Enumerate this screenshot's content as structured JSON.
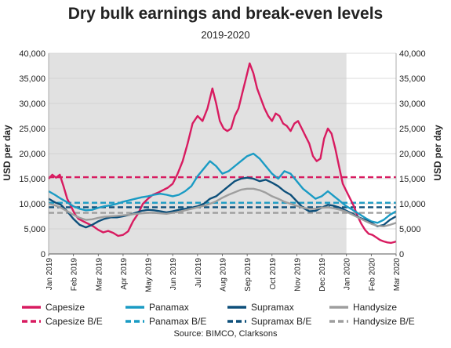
{
  "chart_data": {
    "type": "line",
    "title": "Dry bulk earnings and break-even levels",
    "subtitle": "2019-2020",
    "ylabel": "USD per day",
    "ylabel_right": "USD per day",
    "source": "Source: BIMCO, Clarksons",
    "ylim": [
      0,
      40000
    ],
    "yticks": [
      "0",
      "5,000",
      "10,000",
      "15,000",
      "20,000",
      "25,000",
      "30,000",
      "35,000",
      "40,000"
    ],
    "yticks_right": [
      "0",
      "5,000",
      "10,000",
      "15,000",
      "20,000",
      "25,000",
      "30,000",
      "35,000",
      "40,000"
    ],
    "x_ticks": [
      "Jan 2019",
      "Feb 2019",
      "Mar 2019",
      "Apr 2019",
      "May 2019",
      "Jun 2019",
      "Jul 2019",
      "Aug 2019",
      "Sep 2019",
      "Oct 2019",
      "Nov 2019",
      "Dec 2019",
      "Jan 2020",
      "Feb 2020",
      "Mar 2020"
    ],
    "shaded_range": [
      "Jan 2019",
      "Jan 2020"
    ],
    "grid": true,
    "legend_position": "bottom",
    "series": [
      {
        "name": "Capesize",
        "color": "#d81b60",
        "style": "solid",
        "points": [
          [
            0,
            15000
          ],
          [
            0.15,
            15800
          ],
          [
            0.3,
            15200
          ],
          [
            0.45,
            15800
          ],
          [
            0.6,
            13500
          ],
          [
            0.75,
            11000
          ],
          [
            0.9,
            9500
          ],
          [
            1.05,
            8000
          ],
          [
            1.2,
            7000
          ],
          [
            1.4,
            6500
          ],
          [
            1.6,
            6000
          ],
          [
            1.8,
            5500
          ],
          [
            2.0,
            4800
          ],
          [
            2.2,
            4300
          ],
          [
            2.4,
            4600
          ],
          [
            2.6,
            4200
          ],
          [
            2.8,
            3600
          ],
          [
            3.0,
            3800
          ],
          [
            3.2,
            4500
          ],
          [
            3.4,
            6500
          ],
          [
            3.6,
            8000
          ],
          [
            3.8,
            10000
          ],
          [
            4.0,
            11000
          ],
          [
            4.2,
            11800
          ],
          [
            4.4,
            12200
          ],
          [
            4.6,
            12700
          ],
          [
            4.8,
            13200
          ],
          [
            5.0,
            14000
          ],
          [
            5.2,
            16000
          ],
          [
            5.4,
            18500
          ],
          [
            5.6,
            22000
          ],
          [
            5.8,
            26000
          ],
          [
            6.0,
            27500
          ],
          [
            6.2,
            26500
          ],
          [
            6.4,
            29000
          ],
          [
            6.6,
            33000
          ],
          [
            6.75,
            30000
          ],
          [
            6.9,
            26500
          ],
          [
            7.05,
            25000
          ],
          [
            7.2,
            24500
          ],
          [
            7.35,
            25000
          ],
          [
            7.5,
            27500
          ],
          [
            7.65,
            29000
          ],
          [
            7.8,
            32000
          ],
          [
            7.95,
            35000
          ],
          [
            8.1,
            38000
          ],
          [
            8.25,
            36000
          ],
          [
            8.4,
            33000
          ],
          [
            8.55,
            31000
          ],
          [
            8.7,
            29000
          ],
          [
            8.85,
            27500
          ],
          [
            9.0,
            26500
          ],
          [
            9.15,
            28000
          ],
          [
            9.3,
            27500
          ],
          [
            9.45,
            26000
          ],
          [
            9.6,
            25500
          ],
          [
            9.75,
            24500
          ],
          [
            9.9,
            26000
          ],
          [
            10.05,
            26500
          ],
          [
            10.2,
            25000
          ],
          [
            10.35,
            23500
          ],
          [
            10.5,
            22000
          ],
          [
            10.65,
            19500
          ],
          [
            10.8,
            18500
          ],
          [
            10.95,
            19000
          ],
          [
            11.1,
            23000
          ],
          [
            11.25,
            25000
          ],
          [
            11.4,
            24000
          ],
          [
            11.55,
            21000
          ],
          [
            11.7,
            17500
          ],
          [
            11.85,
            14000
          ],
          [
            12.0,
            12500
          ],
          [
            12.15,
            11000
          ],
          [
            12.3,
            9500
          ],
          [
            12.45,
            7500
          ],
          [
            12.6,
            6000
          ],
          [
            12.75,
            4800
          ],
          [
            12.9,
            4000
          ],
          [
            13.05,
            3800
          ],
          [
            13.2,
            3300
          ],
          [
            13.35,
            2800
          ],
          [
            13.5,
            2500
          ],
          [
            13.65,
            2300
          ],
          [
            13.8,
            2200
          ],
          [
            13.95,
            2400
          ],
          [
            14.0,
            2500
          ]
        ]
      },
      {
        "name": "Panamax",
        "color": "#1a9bc4",
        "style": "solid",
        "points": [
          [
            0,
            12500
          ],
          [
            0.25,
            11800
          ],
          [
            0.5,
            11000
          ],
          [
            0.75,
            10300
          ],
          [
            1.0,
            9500
          ],
          [
            1.25,
            9000
          ],
          [
            1.5,
            8700
          ],
          [
            1.75,
            8800
          ],
          [
            2.0,
            9200
          ],
          [
            2.25,
            9500
          ],
          [
            2.5,
            9700
          ],
          [
            2.75,
            10000
          ],
          [
            3.0,
            10400
          ],
          [
            3.25,
            10700
          ],
          [
            3.5,
            11000
          ],
          [
            3.75,
            11300
          ],
          [
            4.0,
            11500
          ],
          [
            4.25,
            11800
          ],
          [
            4.5,
            12000
          ],
          [
            4.75,
            11800
          ],
          [
            5.0,
            11500
          ],
          [
            5.25,
            11800
          ],
          [
            5.5,
            12500
          ],
          [
            5.75,
            13500
          ],
          [
            6.0,
            15500
          ],
          [
            6.25,
            17000
          ],
          [
            6.5,
            18500
          ],
          [
            6.75,
            17500
          ],
          [
            7.0,
            16000
          ],
          [
            7.25,
            16500
          ],
          [
            7.5,
            17500
          ],
          [
            7.75,
            18500
          ],
          [
            8.0,
            19500
          ],
          [
            8.25,
            20000
          ],
          [
            8.5,
            19000
          ],
          [
            8.75,
            17500
          ],
          [
            9.0,
            16000
          ],
          [
            9.25,
            15000
          ],
          [
            9.5,
            16500
          ],
          [
            9.75,
            16000
          ],
          [
            10.0,
            14500
          ],
          [
            10.25,
            13000
          ],
          [
            10.5,
            12000
          ],
          [
            10.75,
            11000
          ],
          [
            11.0,
            11500
          ],
          [
            11.25,
            12500
          ],
          [
            11.5,
            11500
          ],
          [
            11.75,
            10500
          ],
          [
            12.0,
            9500
          ],
          [
            12.25,
            8800
          ],
          [
            12.5,
            8000
          ],
          [
            12.75,
            7200
          ],
          [
            13.0,
            6500
          ],
          [
            13.25,
            6200
          ],
          [
            13.5,
            6800
          ],
          [
            13.75,
            7800
          ],
          [
            14.0,
            8500
          ]
        ]
      },
      {
        "name": "Supramax",
        "color": "#0d4f7a",
        "style": "solid",
        "points": [
          [
            0,
            11000
          ],
          [
            0.25,
            10300
          ],
          [
            0.5,
            9800
          ],
          [
            0.75,
            8500
          ],
          [
            1.0,
            7000
          ],
          [
            1.25,
            5800
          ],
          [
            1.5,
            5300
          ],
          [
            1.75,
            5800
          ],
          [
            2.0,
            6500
          ],
          [
            2.25,
            7000
          ],
          [
            2.5,
            7300
          ],
          [
            2.75,
            7300
          ],
          [
            3.0,
            7500
          ],
          [
            3.25,
            7800
          ],
          [
            3.5,
            8200
          ],
          [
            3.75,
            8600
          ],
          [
            4.0,
            8800
          ],
          [
            4.25,
            8700
          ],
          [
            4.5,
            8500
          ],
          [
            4.75,
            8300
          ],
          [
            5.0,
            8500
          ],
          [
            5.25,
            8800
          ],
          [
            5.5,
            9000
          ],
          [
            5.75,
            9200
          ],
          [
            6.0,
            9500
          ],
          [
            6.25,
            10000
          ],
          [
            6.5,
            11000
          ],
          [
            6.75,
            11500
          ],
          [
            7.0,
            12500
          ],
          [
            7.25,
            13500
          ],
          [
            7.5,
            14500
          ],
          [
            7.75,
            15000
          ],
          [
            8.0,
            15200
          ],
          [
            8.25,
            15000
          ],
          [
            8.5,
            14500
          ],
          [
            8.75,
            14800
          ],
          [
            9.0,
            14200
          ],
          [
            9.25,
            13500
          ],
          [
            9.5,
            12500
          ],
          [
            9.75,
            11800
          ],
          [
            10.0,
            10500
          ],
          [
            10.25,
            9200
          ],
          [
            10.5,
            8500
          ],
          [
            10.75,
            8600
          ],
          [
            11.0,
            9200
          ],
          [
            11.25,
            9800
          ],
          [
            11.5,
            9600
          ],
          [
            11.75,
            9200
          ],
          [
            12.0,
            8600
          ],
          [
            12.25,
            8000
          ],
          [
            12.5,
            7300
          ],
          [
            12.75,
            6800
          ],
          [
            13.0,
            6200
          ],
          [
            13.25,
            5500
          ],
          [
            13.5,
            5800
          ],
          [
            13.75,
            6800
          ],
          [
            14.0,
            7500
          ]
        ]
      },
      {
        "name": "Handysize",
        "color": "#9e9e9e",
        "style": "solid",
        "points": [
          [
            0,
            10000
          ],
          [
            0.25,
            9700
          ],
          [
            0.5,
            9200
          ],
          [
            0.75,
            8500
          ],
          [
            1.0,
            7800
          ],
          [
            1.25,
            7200
          ],
          [
            1.5,
            6800
          ],
          [
            1.75,
            6900
          ],
          [
            2.0,
            7200
          ],
          [
            2.25,
            7400
          ],
          [
            2.5,
            7500
          ],
          [
            2.75,
            7600
          ],
          [
            3.0,
            7700
          ],
          [
            3.25,
            7800
          ],
          [
            3.5,
            8000
          ],
          [
            3.75,
            8100
          ],
          [
            4.0,
            8200
          ],
          [
            4.25,
            8200
          ],
          [
            4.5,
            8100
          ],
          [
            4.75,
            8000
          ],
          [
            5.0,
            8200
          ],
          [
            5.25,
            8400
          ],
          [
            5.5,
            8700
          ],
          [
            5.75,
            9000
          ],
          [
            6.0,
            9300
          ],
          [
            6.25,
            9600
          ],
          [
            6.5,
            10000
          ],
          [
            6.75,
            10500
          ],
          [
            7.0,
            11200
          ],
          [
            7.25,
            11800
          ],
          [
            7.5,
            12300
          ],
          [
            7.75,
            12800
          ],
          [
            8.0,
            13000
          ],
          [
            8.25,
            13000
          ],
          [
            8.5,
            12700
          ],
          [
            8.75,
            12200
          ],
          [
            9.0,
            11500
          ],
          [
            9.25,
            11000
          ],
          [
            9.5,
            10400
          ],
          [
            9.75,
            10000
          ],
          [
            10.0,
            9600
          ],
          [
            10.25,
            9200
          ],
          [
            10.5,
            9000
          ],
          [
            10.75,
            9000
          ],
          [
            11.0,
            9200
          ],
          [
            11.25,
            9300
          ],
          [
            11.5,
            9100
          ],
          [
            11.75,
            8800
          ],
          [
            12.0,
            8400
          ],
          [
            12.25,
            7800
          ],
          [
            12.5,
            7200
          ],
          [
            12.75,
            6600
          ],
          [
            13.0,
            6000
          ],
          [
            13.25,
            5600
          ],
          [
            13.5,
            5500
          ],
          [
            13.75,
            5800
          ],
          [
            14.0,
            6200
          ]
        ]
      }
    ],
    "breakeven": [
      {
        "name": "Capesize B/E",
        "value": 15300,
        "color": "#d81b60",
        "style": "dashed"
      },
      {
        "name": "Panamax B/E",
        "value": 10200,
        "color": "#1a9bc4",
        "style": "dashed"
      },
      {
        "name": "Supramax B/E",
        "value": 9300,
        "color": "#0d4f7a",
        "style": "dashed"
      },
      {
        "name": "Handysize B/E",
        "value": 8200,
        "color": "#9e9e9e",
        "style": "dashed"
      }
    ],
    "legend": [
      {
        "label": "Capesize",
        "color": "#d81b60",
        "style": "solid"
      },
      {
        "label": "Panamax",
        "color": "#1a9bc4",
        "style": "solid"
      },
      {
        "label": "Supramax",
        "color": "#0d4f7a",
        "style": "solid"
      },
      {
        "label": "Handysize",
        "color": "#9e9e9e",
        "style": "solid"
      },
      {
        "label": "Capesize B/E",
        "color": "#d81b60",
        "style": "dashed"
      },
      {
        "label": "Panamax B/E",
        "color": "#1a9bc4",
        "style": "dashed"
      },
      {
        "label": "Supramax B/E",
        "color": "#0d4f7a",
        "style": "dashed"
      },
      {
        "label": "Handysize B/E",
        "color": "#9e9e9e",
        "style": "dashed"
      }
    ]
  }
}
